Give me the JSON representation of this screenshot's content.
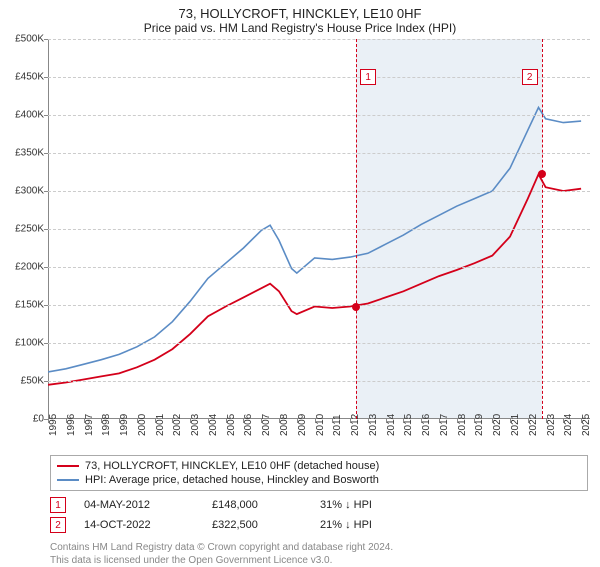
{
  "title": "73, HOLLYCROFT, HINCKLEY, LE10 0HF",
  "subtitle": "Price paid vs. HM Land Registry's House Price Index (HPI)",
  "chart": {
    "type": "line",
    "background_color": "#ffffff",
    "grid_color": "#cccccc",
    "band_color": "#eaf0f6",
    "axis_color": "#888888",
    "title_fontsize": 13,
    "subtitle_fontsize": 12,
    "tick_fontsize": 10,
    "x_years": [
      1995,
      1996,
      1997,
      1998,
      1999,
      2000,
      2001,
      2002,
      2003,
      2004,
      2005,
      2006,
      2007,
      2008,
      2009,
      2010,
      2011,
      2012,
      2013,
      2014,
      2015,
      2016,
      2017,
      2018,
      2019,
      2020,
      2021,
      2022,
      2023,
      2024,
      2025
    ],
    "xlim": [
      1995,
      2025.5
    ],
    "ylim": [
      0,
      500000
    ],
    "ytick_step": 50000,
    "ylabels": [
      "£0",
      "£50K",
      "£100K",
      "£150K",
      "£200K",
      "£250K",
      "£300K",
      "£350K",
      "£400K",
      "£450K",
      "£500K"
    ],
    "band": {
      "from": 2012.34,
      "to": 2022.78
    },
    "series": [
      {
        "name": "hpi",
        "color": "#5b8cc5",
        "width": 1.6,
        "points": [
          [
            1995,
            62000
          ],
          [
            1996,
            66000
          ],
          [
            1997,
            72000
          ],
          [
            1998,
            78000
          ],
          [
            1999,
            85000
          ],
          [
            2000,
            95000
          ],
          [
            2001,
            108000
          ],
          [
            2002,
            128000
          ],
          [
            2003,
            155000
          ],
          [
            2004,
            185000
          ],
          [
            2005,
            205000
          ],
          [
            2006,
            225000
          ],
          [
            2007,
            248000
          ],
          [
            2007.5,
            255000
          ],
          [
            2008,
            235000
          ],
          [
            2008.7,
            198000
          ],
          [
            2009,
            192000
          ],
          [
            2010,
            212000
          ],
          [
            2011,
            210000
          ],
          [
            2012,
            213000
          ],
          [
            2013,
            218000
          ],
          [
            2014,
            230000
          ],
          [
            2015,
            242000
          ],
          [
            2016,
            256000
          ],
          [
            2017,
            268000
          ],
          [
            2018,
            280000
          ],
          [
            2019,
            290000
          ],
          [
            2020,
            300000
          ],
          [
            2021,
            330000
          ],
          [
            2022,
            380000
          ],
          [
            2022.6,
            410000
          ],
          [
            2023,
            395000
          ],
          [
            2024,
            390000
          ],
          [
            2025,
            392000
          ]
        ]
      },
      {
        "name": "price_paid",
        "color": "#d4001a",
        "width": 1.8,
        "points": [
          [
            1995,
            45000
          ],
          [
            1996,
            48000
          ],
          [
            1997,
            52000
          ],
          [
            1998,
            56000
          ],
          [
            1999,
            60000
          ],
          [
            2000,
            68000
          ],
          [
            2001,
            78000
          ],
          [
            2002,
            92000
          ],
          [
            2003,
            112000
          ],
          [
            2004,
            135000
          ],
          [
            2005,
            148000
          ],
          [
            2006,
            160000
          ],
          [
            2007,
            172000
          ],
          [
            2007.5,
            178000
          ],
          [
            2008,
            168000
          ],
          [
            2008.7,
            142000
          ],
          [
            2009,
            138000
          ],
          [
            2010,
            148000
          ],
          [
            2011,
            146000
          ],
          [
            2012,
            148000
          ],
          [
            2013,
            152000
          ],
          [
            2014,
            160000
          ],
          [
            2015,
            168000
          ],
          [
            2016,
            178000
          ],
          [
            2017,
            188000
          ],
          [
            2018,
            196000
          ],
          [
            2019,
            205000
          ],
          [
            2020,
            215000
          ],
          [
            2021,
            240000
          ],
          [
            2022,
            290000
          ],
          [
            2022.6,
            322000
          ],
          [
            2023,
            305000
          ],
          [
            2024,
            300000
          ],
          [
            2025,
            303000
          ]
        ]
      }
    ],
    "markers": [
      {
        "n": "1",
        "year": 2012.34,
        "price": 148000,
        "color": "#d4001a"
      },
      {
        "n": "2",
        "year": 2022.78,
        "price": 322500,
        "color": "#d4001a"
      }
    ]
  },
  "legend": [
    {
      "color": "#d4001a",
      "label": "73, HOLLYCROFT, HINCKLEY, LE10 0HF (detached house)"
    },
    {
      "color": "#5b8cc5",
      "label": "HPI: Average price, detached house, Hinckley and Bosworth"
    }
  ],
  "transactions": [
    {
      "n": "1",
      "date": "04-MAY-2012",
      "price": "£148,000",
      "delta": "31% ↓ HPI",
      "color": "#d4001a"
    },
    {
      "n": "2",
      "date": "14-OCT-2022",
      "price": "£322,500",
      "delta": "21% ↓ HPI",
      "color": "#d4001a"
    }
  ],
  "footer_line1": "Contains HM Land Registry data © Crown copyright and database right 2024.",
  "footer_line2": "This data is licensed under the Open Government Licence v3.0."
}
